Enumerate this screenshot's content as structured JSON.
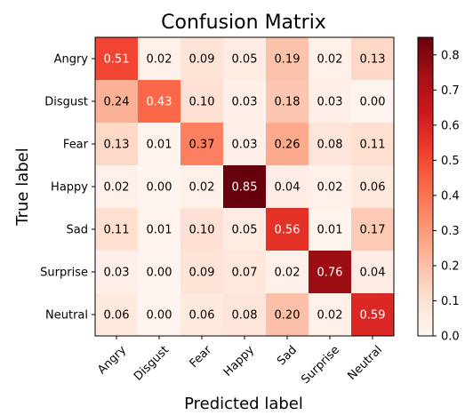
{
  "chart_data": {
    "type": "heatmap",
    "title": "Confusion Matrix",
    "xlabel": "Predicted label",
    "ylabel": "True label",
    "x_categories": [
      "Angry",
      "Disgust",
      "Fear",
      "Happy",
      "Sad",
      "Surprise",
      "Neutral"
    ],
    "y_categories": [
      "Angry",
      "Disgust",
      "Fear",
      "Happy",
      "Sad",
      "Surprise",
      "Neutral"
    ],
    "values": [
      [
        0.51,
        0.02,
        0.09,
        0.05,
        0.19,
        0.02,
        0.13
      ],
      [
        0.24,
        0.43,
        0.1,
        0.03,
        0.18,
        0.03,
        0.0
      ],
      [
        0.13,
        0.01,
        0.37,
        0.03,
        0.26,
        0.08,
        0.11
      ],
      [
        0.02,
        0.0,
        0.02,
        0.85,
        0.04,
        0.02,
        0.06
      ],
      [
        0.11,
        0.01,
        0.1,
        0.05,
        0.56,
        0.01,
        0.17
      ],
      [
        0.03,
        0.0,
        0.09,
        0.07,
        0.02,
        0.76,
        0.04
      ],
      [
        0.06,
        0.0,
        0.06,
        0.08,
        0.2,
        0.02,
        0.59
      ]
    ],
    "value_range": [
      0,
      0.85
    ],
    "colormap": "Reds",
    "colorbar_ticks": [
      "0.0",
      "0.1",
      "0.2",
      "0.3",
      "0.4",
      "0.5",
      "0.6",
      "0.7",
      "0.8"
    ],
    "colorbar_tick_values": [
      0,
      0.1,
      0.2,
      0.3,
      0.4,
      0.5,
      0.6,
      0.7,
      0.8
    ],
    "colors": {
      "stops": [
        "#fff5f0",
        "#fee0d2",
        "#fcbba1",
        "#fc9272",
        "#fb6a4a",
        "#ef3b2c",
        "#cb181d",
        "#a50f15",
        "#67000d"
      ],
      "text_dark": "#000000",
      "text_light": "#ffffff"
    }
  }
}
